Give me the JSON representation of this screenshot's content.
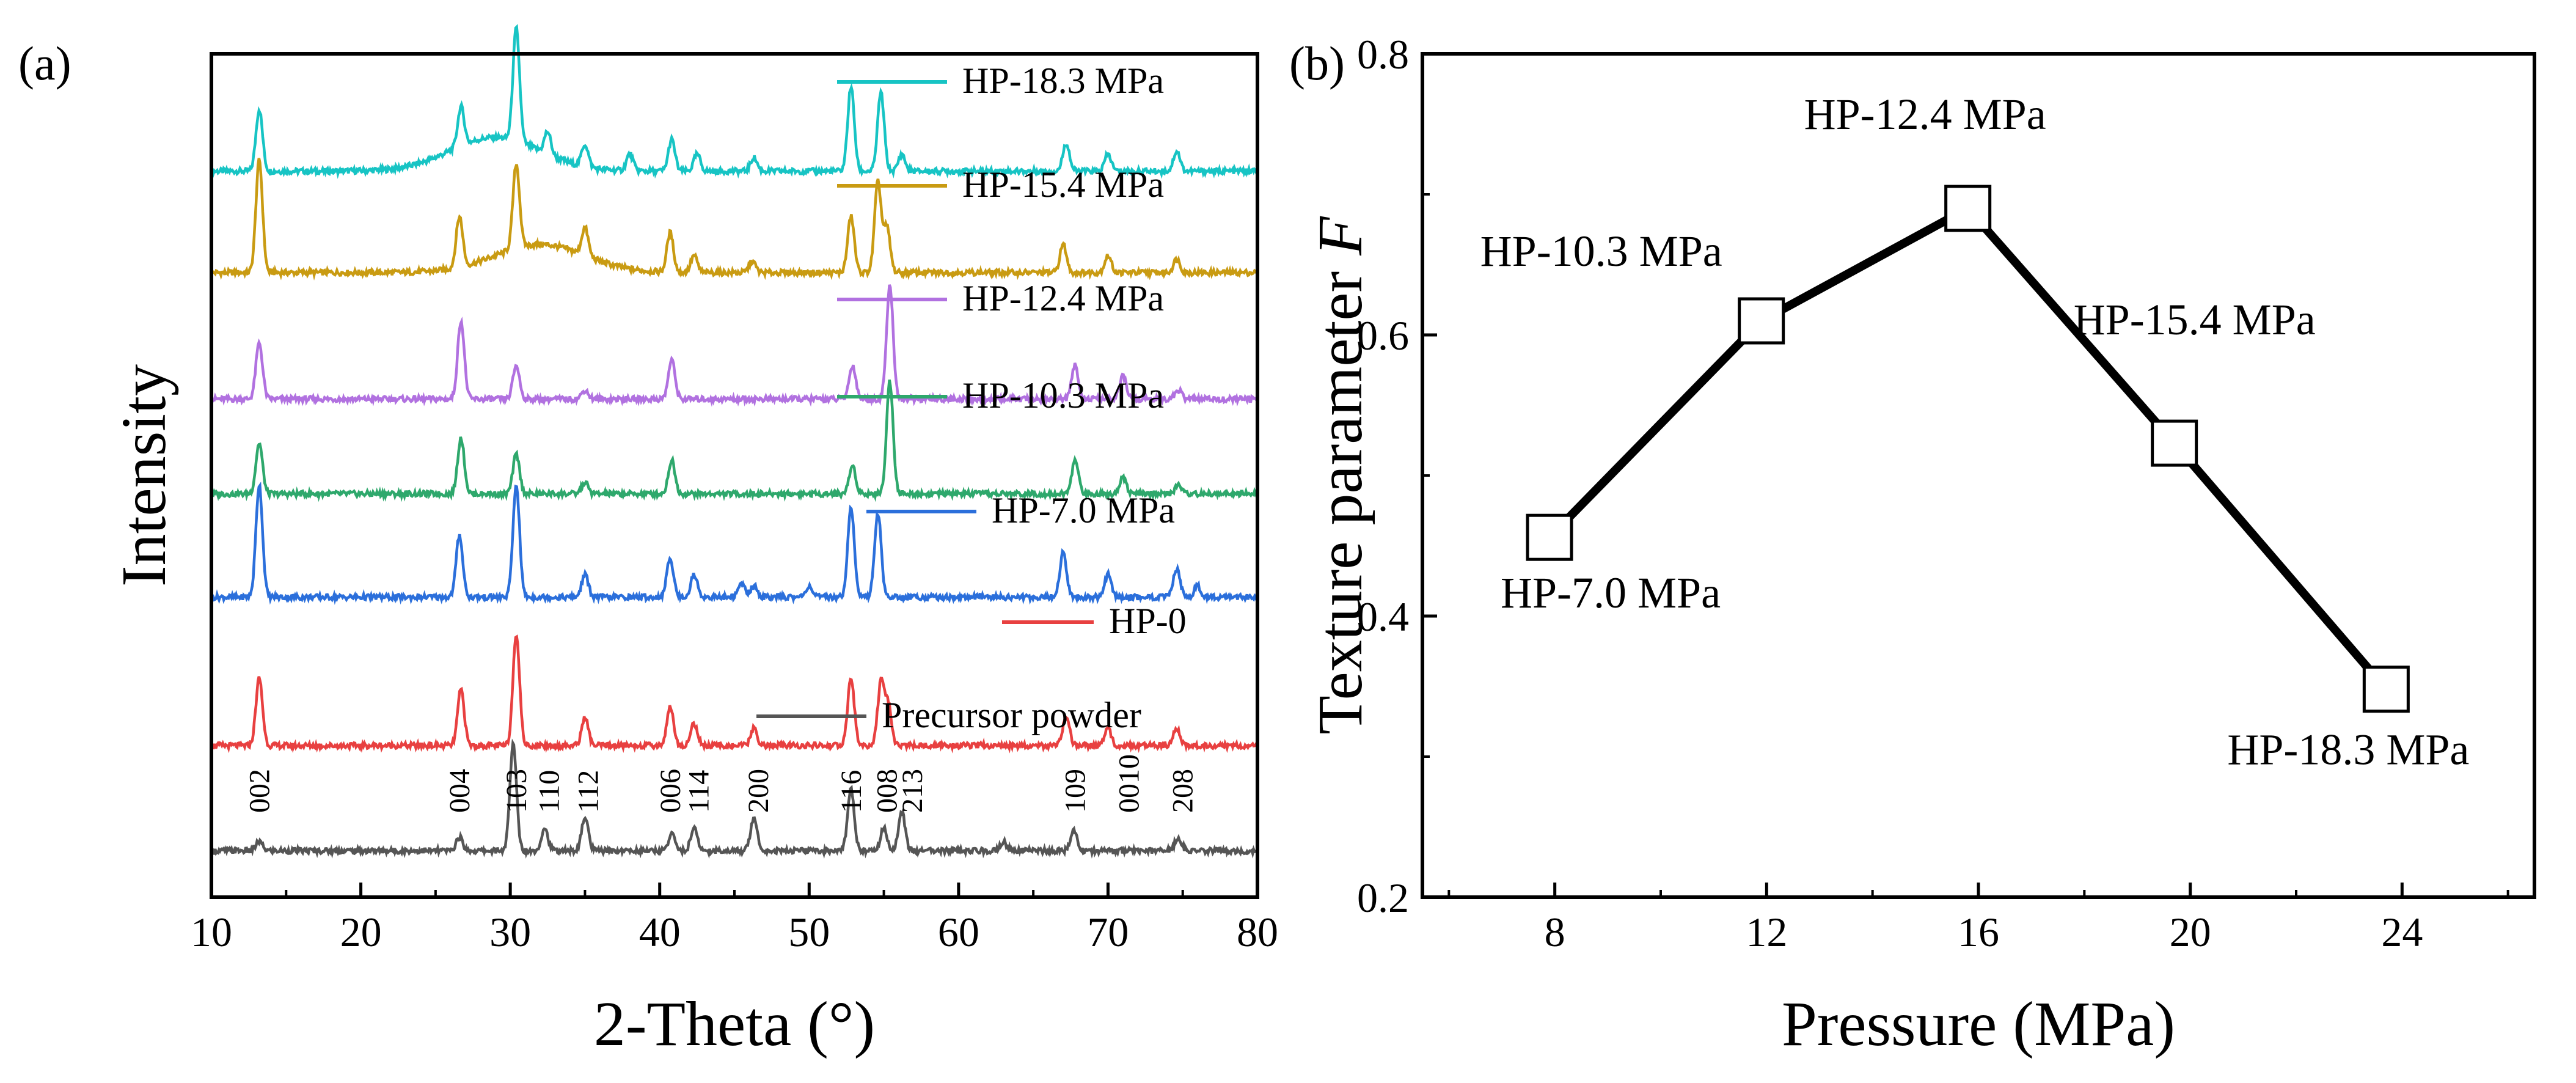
{
  "colors": {
    "HP-18.3 MPa": "#17c4c4",
    "HP-15.4 MPa": "#c99b12",
    "HP-12.4 MPa": "#b171e0",
    "HP-10.3 MPa": "#2ea86c",
    "HP-7.0 MPa": "#2b6fdb",
    "HP-0": "#e84040",
    "Precursor powder": "#555555",
    "axis": "#000000",
    "markerFill": "#ffffff"
  },
  "chart_data": [
    {
      "panel": "(a)",
      "type": "line",
      "title": "",
      "xlabel": "2-Theta (°)",
      "ylabel": "Intensity",
      "xlim": [
        10,
        80
      ],
      "xticks": [
        10,
        20,
        30,
        40,
        50,
        60,
        70,
        80
      ],
      "yticks": [],
      "grid": false,
      "series": [
        {
          "name": "HP-18.3 MPa",
          "offset": 6,
          "peaks": [
            [
              13.2,
              0.55
            ],
            [
              26.7,
              0.35
            ],
            [
              30.4,
              1.0
            ],
            [
              32.5,
              0.2
            ],
            [
              35.0,
              0.2
            ],
            [
              38.0,
              0.15
            ],
            [
              40.8,
              0.28
            ],
            [
              42.5,
              0.15
            ],
            [
              46.3,
              0.12
            ],
            [
              52.8,
              0.75
            ],
            [
              54.8,
              0.7
            ],
            [
              56.2,
              0.15
            ],
            [
              67.2,
              0.25
            ],
            [
              70.0,
              0.15
            ],
            [
              74.6,
              0.18
            ]
          ],
          "hump": [
            [
              29,
              6,
              0.3
            ]
          ]
        },
        {
          "name": "HP-15.4 MPa",
          "offset": 5,
          "peaks": [
            [
              13.2,
              1.0
            ],
            [
              26.6,
              0.45
            ],
            [
              30.4,
              0.75
            ],
            [
              35.0,
              0.25
            ],
            [
              40.7,
              0.35
            ],
            [
              42.3,
              0.15
            ],
            [
              46.2,
              0.1
            ],
            [
              52.8,
              0.5
            ],
            [
              54.6,
              0.8
            ],
            [
              55.2,
              0.4
            ],
            [
              67.0,
              0.25
            ],
            [
              70.0,
              0.15
            ],
            [
              74.6,
              0.12
            ]
          ],
          "hump": [
            [
              32,
              6,
              0.25
            ]
          ]
        },
        {
          "name": "HP-12.4 MPa",
          "offset": 4,
          "peaks": [
            [
              13.2,
              0.5
            ],
            [
              26.7,
              0.7
            ],
            [
              30.4,
              0.3
            ],
            [
              35.0,
              0.08
            ],
            [
              40.8,
              0.35
            ],
            [
              52.9,
              0.3
            ],
            [
              55.4,
              1.0
            ],
            [
              67.8,
              0.3
            ],
            [
              71.0,
              0.2
            ],
            [
              74.7,
              0.08
            ]
          ],
          "hump": []
        },
        {
          "name": "HP-10.3 MPa",
          "offset": 3,
          "peaks": [
            [
              13.2,
              0.45
            ],
            [
              26.7,
              0.5
            ],
            [
              30.4,
              0.35
            ],
            [
              35.0,
              0.1
            ],
            [
              40.8,
              0.3
            ],
            [
              52.9,
              0.25
            ],
            [
              55.4,
              1.0
            ],
            [
              67.8,
              0.3
            ],
            [
              71.0,
              0.15
            ],
            [
              74.7,
              0.08
            ]
          ],
          "hump": []
        },
        {
          "name": "HP-7.0 MPa",
          "offset": 2,
          "peaks": [
            [
              13.2,
              1.0
            ],
            [
              26.6,
              0.55
            ],
            [
              30.4,
              1.0
            ],
            [
              35.0,
              0.2
            ],
            [
              40.7,
              0.35
            ],
            [
              42.3,
              0.2
            ],
            [
              45.5,
              0.12
            ],
            [
              46.3,
              0.1
            ],
            [
              50.0,
              0.1
            ],
            [
              52.8,
              0.8
            ],
            [
              54.6,
              0.75
            ],
            [
              67.0,
              0.4
            ],
            [
              70.0,
              0.2
            ],
            [
              74.6,
              0.25
            ],
            [
              76.0,
              0.1
            ]
          ],
          "hump": []
        },
        {
          "name": "HP-0",
          "offset": 1,
          "peaks": [
            [
              13.2,
              0.6
            ],
            [
              26.7,
              0.5
            ],
            [
              30.4,
              1.0
            ],
            [
              35.0,
              0.25
            ],
            [
              40.7,
              0.35
            ],
            [
              42.3,
              0.2
            ],
            [
              46.3,
              0.15
            ],
            [
              52.8,
              0.6
            ],
            [
              54.8,
              0.55
            ],
            [
              55.3,
              0.35
            ],
            [
              67.2,
              0.25
            ],
            [
              70.0,
              0.15
            ],
            [
              74.6,
              0.15
            ]
          ],
          "hump": []
        },
        {
          "name": "Precursor powder",
          "offset": 0,
          "peaks": [
            [
              13.2,
              0.08
            ],
            [
              26.6,
              0.12
            ],
            [
              30.2,
              0.95
            ],
            [
              32.3,
              0.2
            ],
            [
              35.0,
              0.3
            ],
            [
              40.8,
              0.15
            ],
            [
              42.3,
              0.2
            ],
            [
              46.3,
              0.3
            ],
            [
              52.8,
              0.55
            ],
            [
              55.0,
              0.2
            ],
            [
              56.2,
              0.35
            ],
            [
              63.0,
              0.08
            ],
            [
              67.7,
              0.18
            ],
            [
              74.7,
              0.12
            ]
          ],
          "hump": []
        }
      ],
      "legend": [
        "HP-18.3 MPa",
        "HP-15.4 MPa",
        "HP-12.4 MPa",
        "HP-10.3 MPa",
        "HP-7.0 MPa",
        "HP-0",
        "Precursor powder"
      ],
      "annotations": [
        {
          "text": "002",
          "x": 13.2
        },
        {
          "text": "004",
          "x": 26.6
        },
        {
          "text": "103",
          "x": 30.4
        },
        {
          "text": "110",
          "x": 32.6
        },
        {
          "text": "112",
          "x": 35.2
        },
        {
          "text": "006",
          "x": 40.7
        },
        {
          "text": "114",
          "x": 42.6
        },
        {
          "text": "200",
          "x": 46.6
        },
        {
          "text": "116",
          "x": 52.8
        },
        {
          "text": "008",
          "x": 55.2
        },
        {
          "text": "213",
          "x": 56.9
        },
        {
          "text": "109",
          "x": 67.8
        },
        {
          "text": "0010",
          "x": 71.4
        },
        {
          "text": "208",
          "x": 75.0
        }
      ]
    },
    {
      "panel": "(b)",
      "type": "line",
      "title": "",
      "xlabel": "Pressure (MPa)",
      "ylabel": "Texture parameter ",
      "ylabel_italic": "F",
      "xlim": [
        5.5,
        26.5
      ],
      "ylim": [
        0.2,
        0.8
      ],
      "xticks": [
        8,
        12,
        16,
        20,
        24
      ],
      "yticks": [
        0.2,
        0.4,
        0.6,
        0.8
      ],
      "ytick_labels": [
        "0.2",
        "0.4",
        "0.6",
        "0.8"
      ],
      "grid": false,
      "x": [
        7.9,
        11.9,
        15.8,
        19.7,
        23.7
      ],
      "y": [
        0.456,
        0.61,
        0.69,
        0.523,
        0.348
      ],
      "labels": [
        "HP-7.0 MPa",
        "HP-10.3 MPa",
        "HP-12.4 MPa",
        "HP-15.4 MPa",
        "HP-18.3 MPa"
      ],
      "marker": "open-square"
    }
  ]
}
